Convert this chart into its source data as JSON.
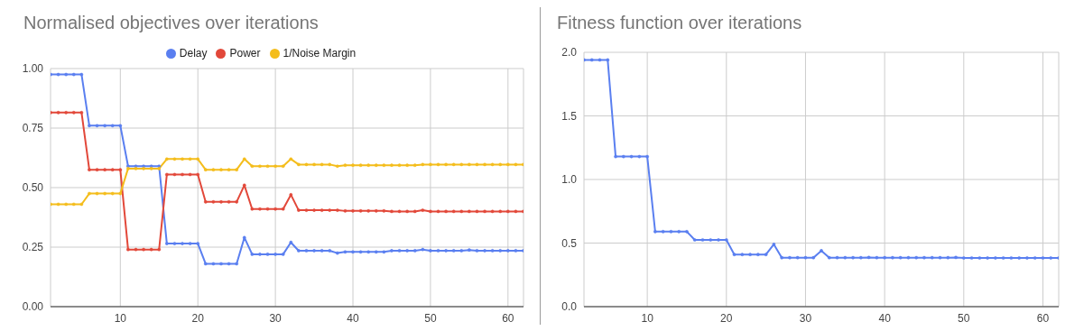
{
  "chart_data": [
    {
      "type": "line",
      "title": "Normalised objectives over iterations",
      "x": [
        1,
        2,
        3,
        4,
        5,
        6,
        7,
        8,
        9,
        10,
        11,
        12,
        13,
        14,
        15,
        16,
        17,
        18,
        19,
        20,
        21,
        22,
        23,
        24,
        25,
        26,
        27,
        28,
        29,
        30,
        31,
        32,
        33,
        34,
        35,
        36,
        37,
        38,
        39,
        40,
        41,
        42,
        43,
        44,
        45,
        46,
        47,
        48,
        49,
        50,
        51,
        52,
        53,
        54,
        55,
        56,
        57,
        58,
        59,
        60,
        61,
        62
      ],
      "series": [
        {
          "name": "Delay",
          "color": "#5a7ff0",
          "values": [
            0.975,
            0.975,
            0.975,
            0.975,
            0.975,
            0.76,
            0.76,
            0.76,
            0.76,
            0.76,
            0.59,
            0.59,
            0.59,
            0.59,
            0.59,
            0.265,
            0.265,
            0.265,
            0.265,
            0.265,
            0.18,
            0.18,
            0.18,
            0.18,
            0.18,
            0.29,
            0.22,
            0.22,
            0.22,
            0.22,
            0.22,
            0.27,
            0.235,
            0.235,
            0.235,
            0.235,
            0.235,
            0.225,
            0.23,
            0.23,
            0.23,
            0.23,
            0.23,
            0.23,
            0.235,
            0.235,
            0.235,
            0.235,
            0.24,
            0.235,
            0.235,
            0.235,
            0.235,
            0.235,
            0.238,
            0.235,
            0.235,
            0.235,
            0.235,
            0.235,
            0.235,
            0.235
          ]
        },
        {
          "name": "Power",
          "color": "#e2483a",
          "values": [
            0.815,
            0.815,
            0.815,
            0.815,
            0.815,
            0.575,
            0.575,
            0.575,
            0.575,
            0.575,
            0.24,
            0.24,
            0.24,
            0.24,
            0.24,
            0.555,
            0.555,
            0.555,
            0.555,
            0.555,
            0.44,
            0.44,
            0.44,
            0.44,
            0.44,
            0.51,
            0.41,
            0.41,
            0.41,
            0.41,
            0.41,
            0.47,
            0.405,
            0.405,
            0.405,
            0.405,
            0.405,
            0.405,
            0.402,
            0.402,
            0.402,
            0.402,
            0.402,
            0.402,
            0.4,
            0.4,
            0.4,
            0.4,
            0.405,
            0.4,
            0.4,
            0.4,
            0.4,
            0.4,
            0.4,
            0.4,
            0.4,
            0.4,
            0.4,
            0.4,
            0.4,
            0.4
          ]
        },
        {
          "name": "1/Noise Margin",
          "color": "#f4bd1c",
          "values": [
            0.43,
            0.43,
            0.43,
            0.43,
            0.43,
            0.475,
            0.475,
            0.475,
            0.475,
            0.475,
            0.58,
            0.58,
            0.58,
            0.58,
            0.58,
            0.62,
            0.62,
            0.62,
            0.62,
            0.62,
            0.575,
            0.575,
            0.575,
            0.575,
            0.575,
            0.62,
            0.59,
            0.59,
            0.59,
            0.59,
            0.59,
            0.62,
            0.597,
            0.597,
            0.597,
            0.597,
            0.597,
            0.59,
            0.594,
            0.594,
            0.594,
            0.594,
            0.594,
            0.594,
            0.594,
            0.594,
            0.594,
            0.594,
            0.597,
            0.597,
            0.597,
            0.597,
            0.597,
            0.597,
            0.597,
            0.597,
            0.597,
            0.597,
            0.597,
            0.597,
            0.597,
            0.597
          ]
        }
      ],
      "xlim": [
        1,
        62
      ],
      "xticks": [
        10,
        20,
        30,
        40,
        50,
        60
      ],
      "ylim": [
        0,
        1
      ],
      "yticks": [
        {
          "value": 0,
          "label": "0.00"
        },
        0.25,
        {
          "value": 0.5,
          "label": "0.50"
        },
        0.75,
        {
          "value": 1,
          "label": "1.00"
        }
      ],
      "grid": true,
      "legend": "top",
      "marker": "circle",
      "line_style": "solid"
    },
    {
      "type": "line",
      "title": "Fitness function over iterations",
      "x": [
        2,
        3,
        4,
        5,
        6,
        7,
        8,
        9,
        10,
        11,
        12,
        13,
        14,
        15,
        16,
        17,
        18,
        19,
        20,
        21,
        22,
        23,
        24,
        25,
        26,
        27,
        28,
        29,
        30,
        31,
        32,
        33,
        34,
        35,
        36,
        37,
        38,
        39,
        40,
        41,
        42,
        43,
        44,
        45,
        46,
        47,
        48,
        49,
        50,
        51,
        52,
        53,
        54,
        55,
        56,
        57,
        58,
        59,
        60,
        61,
        62
      ],
      "series": [
        {
          "color": "#5a7ff0",
          "values": [
            1.94,
            1.94,
            1.94,
            1.94,
            1.18,
            1.18,
            1.18,
            1.18,
            1.18,
            0.59,
            0.59,
            0.59,
            0.59,
            0.59,
            0.525,
            0.525,
            0.525,
            0.525,
            0.525,
            0.41,
            0.41,
            0.41,
            0.41,
            0.41,
            0.49,
            0.385,
            0.385,
            0.385,
            0.385,
            0.385,
            0.44,
            0.385,
            0.385,
            0.385,
            0.385,
            0.385,
            0.387,
            0.385,
            0.385,
            0.385,
            0.385,
            0.385,
            0.385,
            0.385,
            0.385,
            0.385,
            0.385,
            0.387,
            0.383,
            0.383,
            0.383,
            0.383,
            0.383,
            0.383,
            0.383,
            0.383,
            0.383,
            0.383,
            0.383,
            0.383,
            0.383
          ]
        }
      ],
      "xlim": [
        2,
        62
      ],
      "xticks": [
        10,
        20,
        30,
        40,
        50,
        60
      ],
      "ylim": [
        0,
        2
      ],
      "yticks": [
        {
          "value": 0,
          "label": "0.0"
        },
        0.5,
        {
          "value": 1,
          "label": "1.0"
        },
        1.5,
        {
          "value": 2,
          "label": "2.0"
        }
      ],
      "grid": true,
      "legend": false,
      "marker": "circle",
      "line_style": "solid"
    }
  ]
}
